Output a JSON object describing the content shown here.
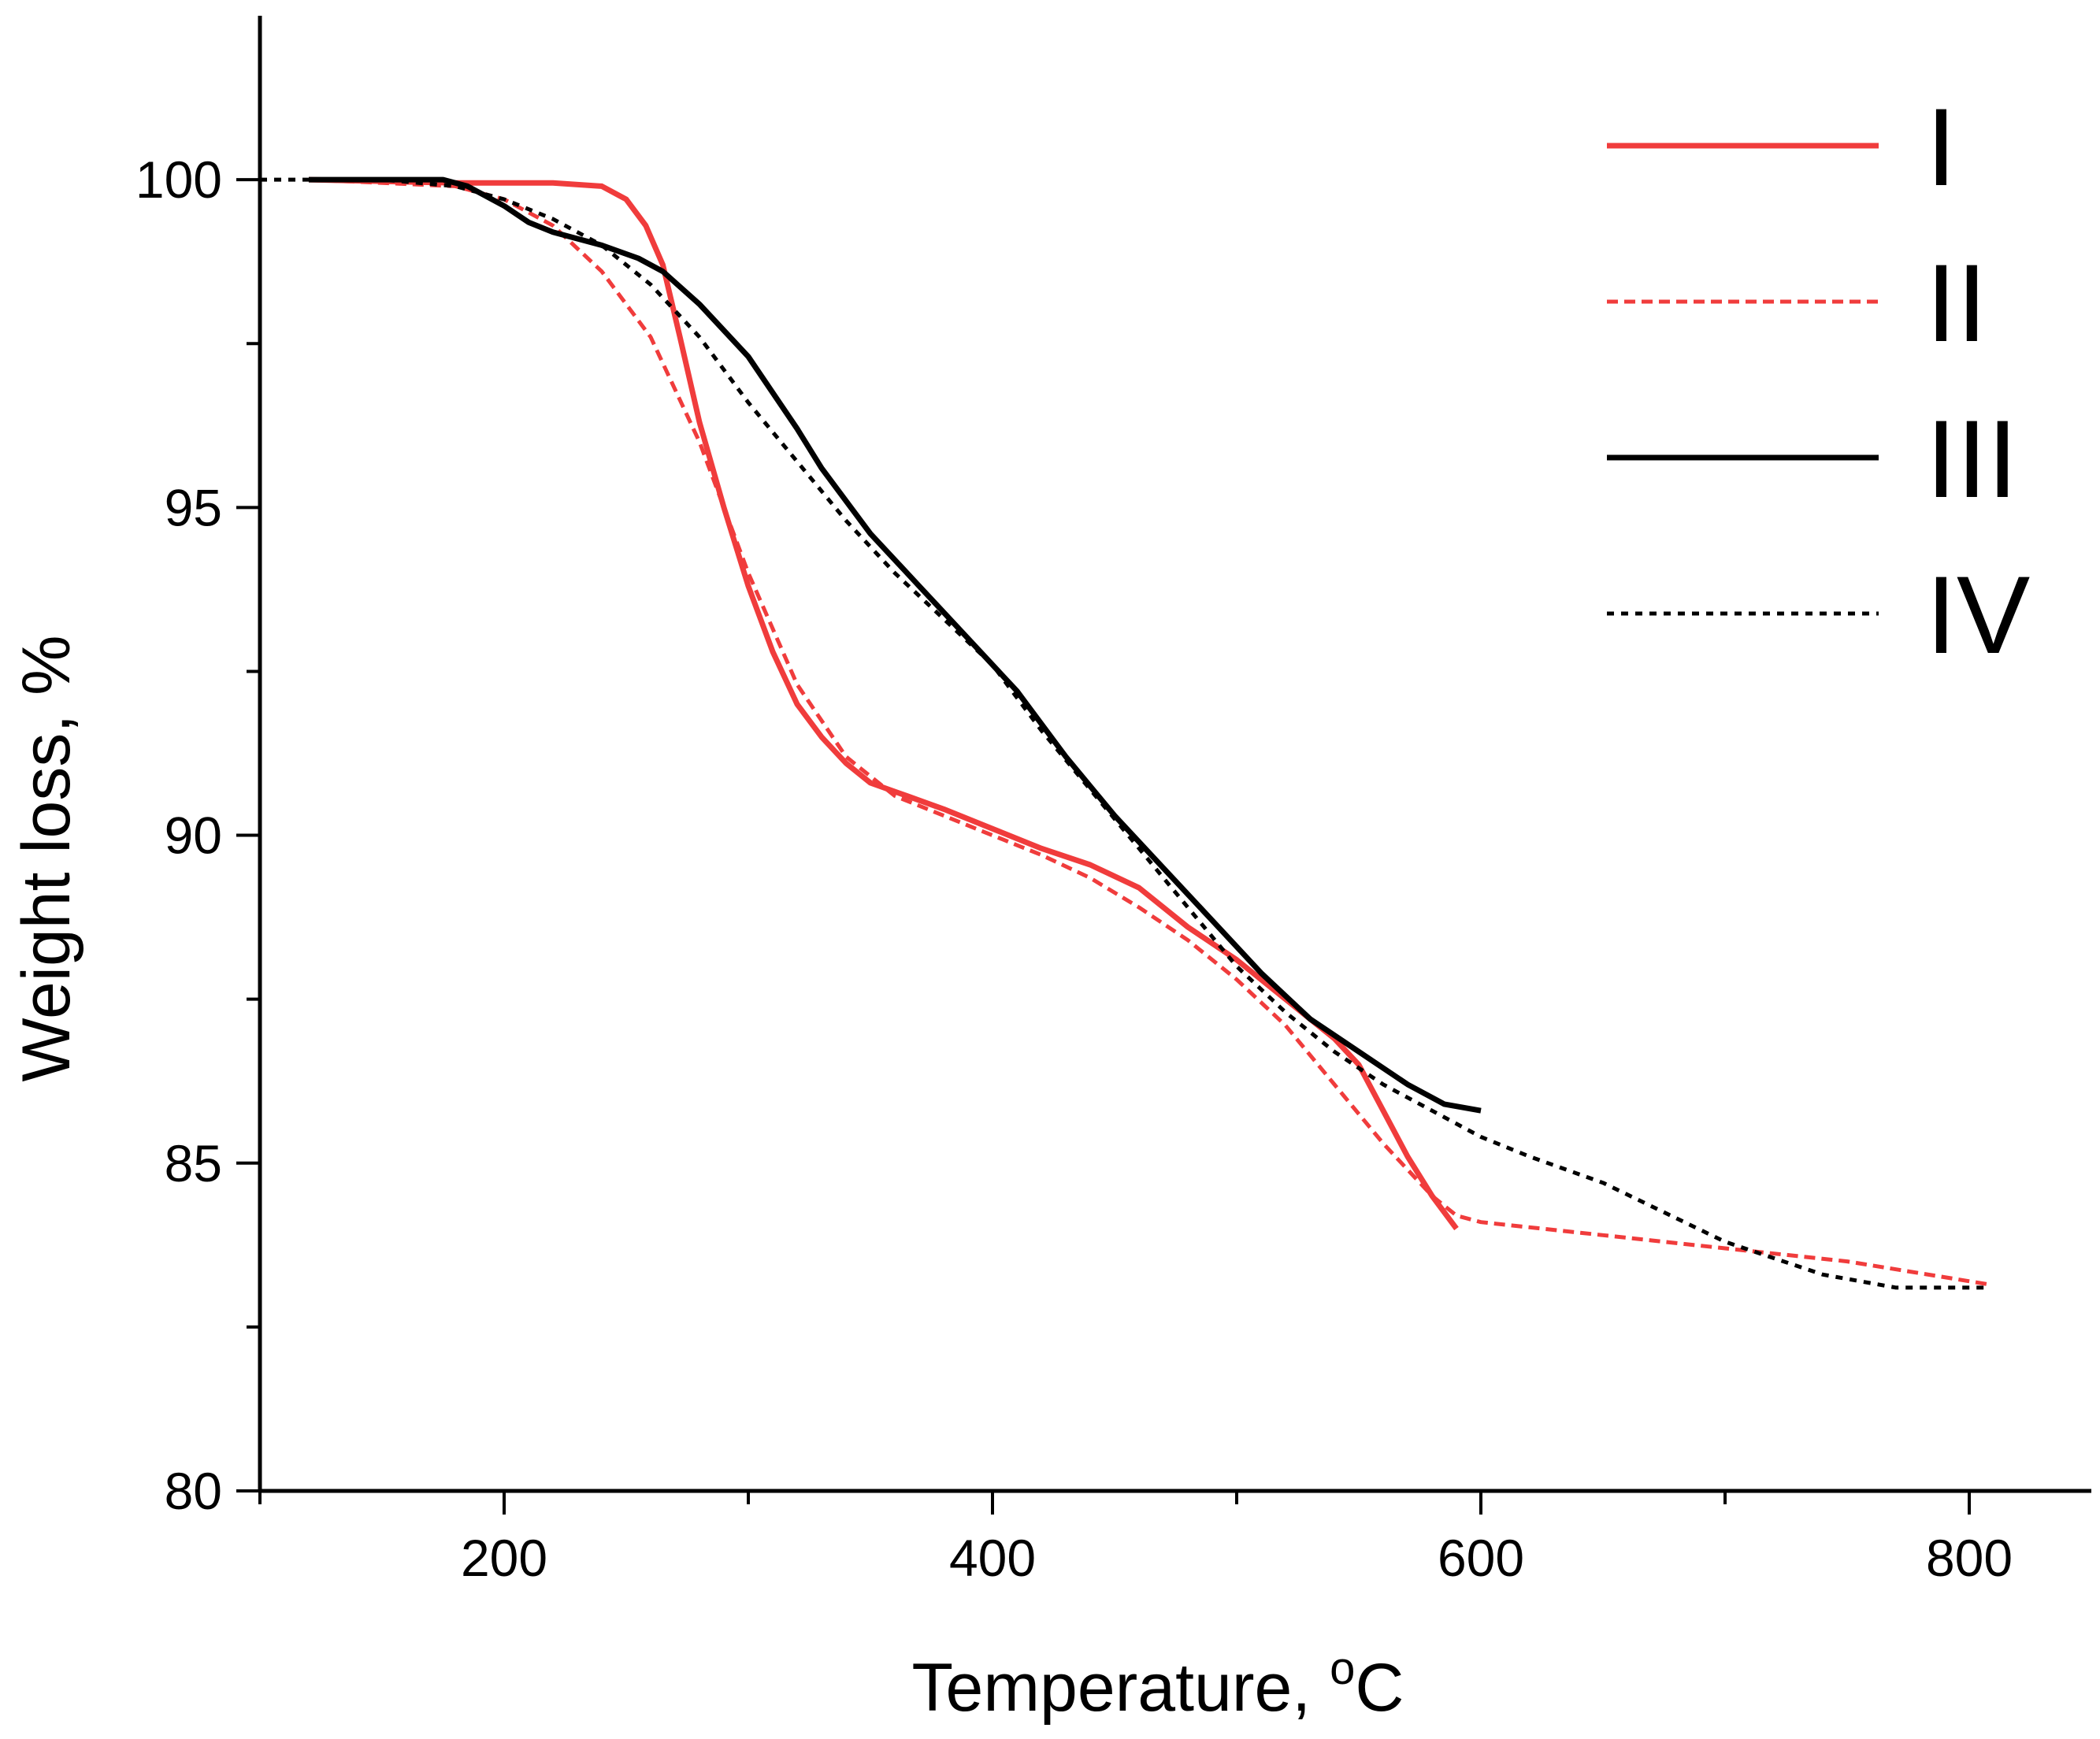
{
  "chart_data": {
    "type": "line",
    "title": "",
    "xlabel": "Temperature, ",
    "xlabel_sup": "o",
    "xlabel_unit": "C",
    "ylabel": "Weight loss, %",
    "xlim": [
      100,
      850
    ],
    "ylim": [
      80,
      102.5
    ],
    "xticks_major": [
      200,
      400,
      600,
      800
    ],
    "xtick_labels": [
      "200",
      "400",
      "600",
      "800"
    ],
    "xticks_minor": [
      100,
      300,
      500,
      700
    ],
    "yticks_major": [
      80,
      85,
      90,
      95,
      100
    ],
    "ytick_labels": [
      "80",
      "85",
      "90",
      "95",
      "100"
    ],
    "yticks_minor": [
      82.5,
      87.5,
      92.5,
      97.5
    ],
    "legend_position": "top-right",
    "series": [
      {
        "name": "I",
        "color": "#f03c3c",
        "dash": "solid",
        "x": [
          120,
          180,
          220,
          240,
          250,
          258,
          265,
          272,
          280,
          290,
          300,
          310,
          320,
          330,
          340,
          350,
          365,
          380,
          400,
          420,
          440,
          460,
          480,
          500,
          520,
          540,
          550,
          560,
          570,
          580,
          590
        ],
        "y": [
          100,
          99.95,
          99.95,
          99.9,
          99.7,
          99.3,
          98.7,
          97.6,
          96.3,
          95.0,
          93.8,
          92.8,
          92.0,
          91.5,
          91.1,
          90.8,
          90.6,
          90.4,
          90.1,
          89.8,
          89.55,
          89.2,
          88.6,
          88.1,
          87.5,
          86.9,
          86.5,
          85.8,
          85.1,
          84.5,
          84.0
        ]
      },
      {
        "name": "II",
        "color": "#f03c3c",
        "dash": "dashed",
        "x": [
          120,
          180,
          200,
          220,
          240,
          260,
          280,
          300,
          320,
          340,
          360,
          380,
          400,
          420,
          440,
          460,
          480,
          500,
          520,
          540,
          560,
          580,
          590,
          600,
          650,
          700,
          750,
          808
        ],
        "y": [
          100,
          99.9,
          99.7,
          99.3,
          98.6,
          97.6,
          96.0,
          94.0,
          92.3,
          91.2,
          90.6,
          90.3,
          90.0,
          89.7,
          89.35,
          88.9,
          88.4,
          87.8,
          87.1,
          86.2,
          85.3,
          84.5,
          84.2,
          84.1,
          83.9,
          83.7,
          83.5,
          83.15
        ]
      },
      {
        "name": "III",
        "color": "#000000",
        "dash": "solid",
        "x": [
          120,
          150,
          175,
          185,
          200,
          210,
          220,
          240,
          255,
          265,
          280,
          300,
          320,
          330,
          350,
          370,
          390,
          410,
          430,
          450,
          470,
          490,
          510,
          530,
          550,
          570,
          585,
          600
        ],
        "y": [
          100,
          100,
          100,
          99.9,
          99.6,
          99.35,
          99.2,
          99.0,
          98.8,
          98.6,
          98.1,
          97.3,
          96.2,
          95.6,
          94.6,
          93.8,
          93.0,
          92.2,
          91.2,
          90.3,
          89.5,
          88.7,
          87.9,
          87.2,
          86.7,
          86.2,
          85.9,
          85.8
        ]
      },
      {
        "name": "IV",
        "color": "#000000",
        "dash": "dotted",
        "x": [
          100,
          150,
          180,
          200,
          220,
          240,
          260,
          280,
          300,
          320,
          340,
          360,
          380,
          400,
          420,
          440,
          460,
          480,
          500,
          520,
          540,
          560,
          580,
          600,
          620,
          650,
          700,
          740,
          770,
          800,
          808
        ],
        "y": [
          100,
          100,
          99.9,
          99.7,
          99.4,
          99.0,
          98.4,
          97.6,
          96.6,
          95.7,
          94.8,
          94.0,
          93.3,
          92.6,
          91.6,
          90.7,
          89.8,
          88.9,
          88.0,
          87.3,
          86.7,
          86.2,
          85.8,
          85.4,
          85.1,
          84.7,
          83.8,
          83.3,
          83.1,
          83.1,
          83.1
        ]
      }
    ]
  }
}
